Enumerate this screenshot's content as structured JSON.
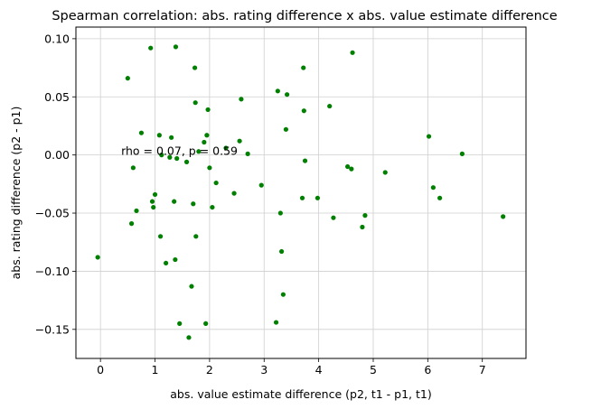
{
  "chart_data": {
    "type": "scatter",
    "title": "Spearman correlation: abs. rating difference x abs. value estimate difference",
    "xlabel": "abs. value estimate difference (p2, t1 - p1, t1)",
    "ylabel": "abs. rating difference (p2 - p1)",
    "xlim": [
      -0.45,
      7.8
    ],
    "ylim": [
      -0.175,
      0.11
    ],
    "xticks": [
      0,
      1,
      2,
      3,
      4,
      5,
      6,
      7
    ],
    "xtick_labels": [
      "0",
      "1",
      "2",
      "3",
      "4",
      "5",
      "6",
      "7"
    ],
    "yticks": [
      0.1,
      0.05,
      0.0,
      -0.05,
      -0.1,
      -0.15
    ],
    "ytick_labels": [
      "0.10",
      "0.05",
      "0.00",
      "−0.05",
      "−0.10",
      "−0.15"
    ],
    "grid": true,
    "marker_color": "#008000",
    "annotation": {
      "text": "rho = 0.07, p = 0.59",
      "x": 0.38,
      "y": 0.0
    },
    "points": [
      {
        "x": -0.05,
        "y": -0.088
      },
      {
        "x": 0.5,
        "y": 0.066
      },
      {
        "x": 0.57,
        "y": -0.059
      },
      {
        "x": 0.6,
        "y": -0.011
      },
      {
        "x": 0.66,
        "y": -0.048
      },
      {
        "x": 0.75,
        "y": 0.019
      },
      {
        "x": 0.92,
        "y": 0.092
      },
      {
        "x": 0.95,
        "y": -0.04
      },
      {
        "x": 0.97,
        "y": -0.045
      },
      {
        "x": 1.0,
        "y": -0.034
      },
      {
        "x": 1.08,
        "y": 0.017
      },
      {
        "x": 1.1,
        "y": -0.07
      },
      {
        "x": 1.12,
        "y": 0.0
      },
      {
        "x": 1.2,
        "y": -0.093
      },
      {
        "x": 1.27,
        "y": -0.002
      },
      {
        "x": 1.3,
        "y": 0.015
      },
      {
        "x": 1.35,
        "y": -0.04
      },
      {
        "x": 1.37,
        "y": -0.09
      },
      {
        "x": 1.38,
        "y": 0.093
      },
      {
        "x": 1.4,
        "y": -0.003
      },
      {
        "x": 1.45,
        "y": -0.145
      },
      {
        "x": 1.58,
        "y": -0.006
      },
      {
        "x": 1.62,
        "y": -0.157
      },
      {
        "x": 1.67,
        "y": -0.113
      },
      {
        "x": 1.7,
        "y": -0.042
      },
      {
        "x": 1.73,
        "y": 0.075
      },
      {
        "x": 1.74,
        "y": 0.045
      },
      {
        "x": 1.75,
        "y": -0.07
      },
      {
        "x": 1.8,
        "y": 0.003
      },
      {
        "x": 1.9,
        "y": 0.011
      },
      {
        "x": 1.93,
        "y": -0.145
      },
      {
        "x": 1.95,
        "y": 0.017
      },
      {
        "x": 1.97,
        "y": 0.039
      },
      {
        "x": 2.0,
        "y": -0.011
      },
      {
        "x": 2.05,
        "y": -0.045
      },
      {
        "x": 2.12,
        "y": -0.024
      },
      {
        "x": 2.3,
        "y": 0.006
      },
      {
        "x": 2.45,
        "y": -0.033
      },
      {
        "x": 2.55,
        "y": 0.012
      },
      {
        "x": 2.58,
        "y": 0.048
      },
      {
        "x": 2.7,
        "y": 0.001
      },
      {
        "x": 2.95,
        "y": -0.026
      },
      {
        "x": 3.22,
        "y": -0.144
      },
      {
        "x": 3.25,
        "y": 0.055
      },
      {
        "x": 3.3,
        "y": -0.05
      },
      {
        "x": 3.32,
        "y": -0.083
      },
      {
        "x": 3.35,
        "y": -0.12
      },
      {
        "x": 3.4,
        "y": 0.022
      },
      {
        "x": 3.42,
        "y": 0.052
      },
      {
        "x": 3.7,
        "y": -0.037
      },
      {
        "x": 3.72,
        "y": 0.075
      },
      {
        "x": 3.73,
        "y": 0.038
      },
      {
        "x": 3.75,
        "y": -0.005
      },
      {
        "x": 3.98,
        "y": -0.037
      },
      {
        "x": 4.2,
        "y": 0.042
      },
      {
        "x": 4.27,
        "y": -0.054
      },
      {
        "x": 4.53,
        "y": -0.01
      },
      {
        "x": 4.6,
        "y": -0.012
      },
      {
        "x": 4.62,
        "y": 0.088
      },
      {
        "x": 4.8,
        "y": -0.062
      },
      {
        "x": 4.85,
        "y": -0.052
      },
      {
        "x": 5.22,
        "y": -0.015
      },
      {
        "x": 6.02,
        "y": 0.016
      },
      {
        "x": 6.1,
        "y": -0.028
      },
      {
        "x": 6.22,
        "y": -0.037
      },
      {
        "x": 6.63,
        "y": 0.001
      },
      {
        "x": 7.38,
        "y": -0.053
      }
    ]
  }
}
